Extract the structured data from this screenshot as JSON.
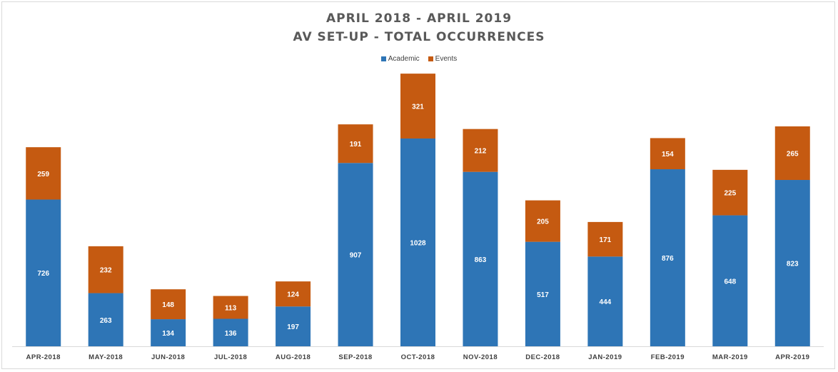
{
  "chart_data": {
    "type": "bar",
    "stacked": true,
    "title": "APRIL 2018 - APRIL 2019",
    "subtitle": "AV SET-UP - TOTAL OCCURRENCES",
    "xlabel": "",
    "ylabel": "",
    "legend_position": "top",
    "grid": false,
    "categories": [
      "APR-2018",
      "MAY-2018",
      "JUN-2018",
      "JUL-2018",
      "AUG-2018",
      "SEP-2018",
      "OCT-2018",
      "NOV-2018",
      "DEC-2018",
      "JAN-2019",
      "FEB-2019",
      "MAR-2019",
      "APR-2019"
    ],
    "series": [
      {
        "name": "Academic",
        "color": "#2e75b6",
        "values": [
          726,
          263,
          134,
          136,
          197,
          907,
          1028,
          863,
          517,
          444,
          876,
          648,
          823
        ]
      },
      {
        "name": "Events",
        "color": "#c55a11",
        "values": [
          259,
          232,
          148,
          113,
          124,
          191,
          321,
          212,
          205,
          171,
          154,
          225,
          265
        ]
      }
    ],
    "ylim": [
      0,
      1360
    ]
  }
}
